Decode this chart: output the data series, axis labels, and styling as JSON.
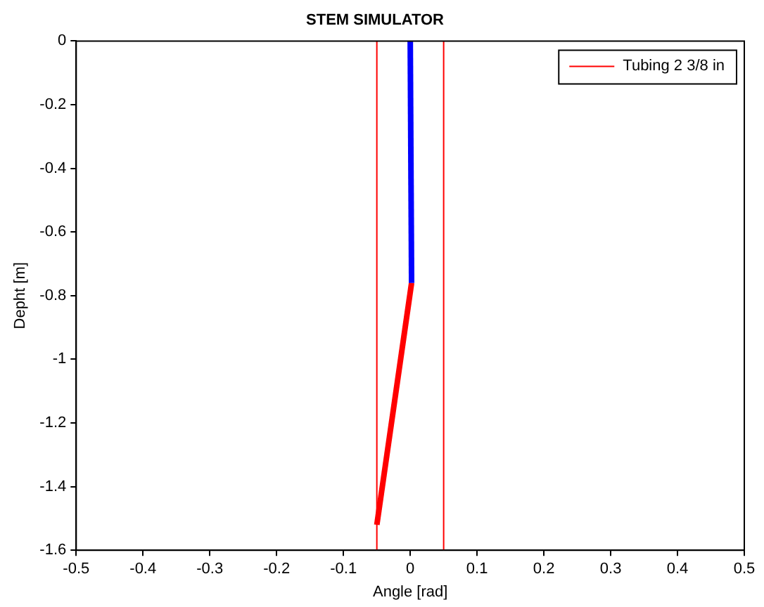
{
  "chart_data": {
    "type": "line",
    "title": "STEM SIMULATOR",
    "xlabel": "Angle [rad]",
    "ylabel": "Depht [m]",
    "xlim": [
      -0.5,
      0.5
    ],
    "xticks": [
      -0.5,
      -0.4,
      -0.3,
      -0.2,
      -0.1,
      0,
      0.1,
      0.2,
      0.3,
      0.4,
      0.5
    ],
    "ylim": [
      -1.6,
      0
    ],
    "yticks": [
      -1.6,
      -1.4,
      -1.2,
      -1,
      -0.8,
      -0.6,
      -0.4,
      -0.2,
      0
    ],
    "grid": false,
    "legend": "top right",
    "marker": "none",
    "line_style": "solid",
    "series": [
      {
        "name": "Tubing 2 3/8 in",
        "color": "#ff0000",
        "x": [
          -0.05,
          -0.05
        ],
        "values": [
          0,
          -1.6
        ]
      },
      {
        "color": "#ff0000",
        "x": [
          0.05,
          0.05
        ],
        "values": [
          0,
          -1.6
        ]
      },
      {
        "color": "#0000ff",
        "x": [
          0,
          0.002
        ],
        "values": [
          0,
          -0.76
        ]
      },
      {
        "color": "#ff0000",
        "x": [
          0.002,
          -0.05
        ],
        "values": [
          -0.76,
          -1.52
        ]
      }
    ]
  }
}
